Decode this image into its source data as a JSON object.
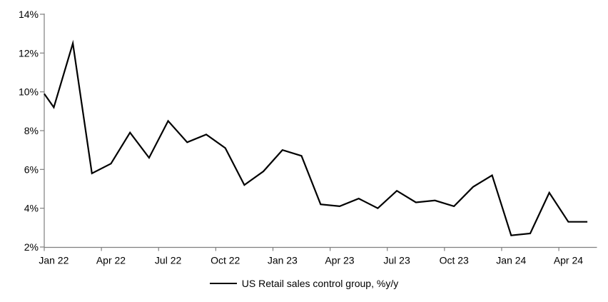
{
  "chart_data": {
    "type": "line",
    "title": "",
    "xlabel": "",
    "ylabel": "",
    "x": [
      "Jan 22",
      "Feb 22",
      "Mar 22",
      "Apr 22",
      "May 22",
      "Jun 22",
      "Jul 22",
      "Aug 22",
      "Sep 22",
      "Oct 22",
      "Nov 22",
      "Dec 22",
      "Jan 23",
      "Feb 23",
      "Mar 23",
      "Apr 23",
      "May 23",
      "Jun 23",
      "Jul 23",
      "Aug 23",
      "Sep 23",
      "Oct 23",
      "Nov 23",
      "Dec 23",
      "Jan 24",
      "Feb 24",
      "Mar 24",
      "Apr 24",
      "May 24"
    ],
    "series": [
      {
        "name": "US Retail sales control group, %y/y",
        "values": [
          9.2,
          12.5,
          5.8,
          6.3,
          7.9,
          6.6,
          8.5,
          7.4,
          7.8,
          7.1,
          5.2,
          5.9,
          7.0,
          6.7,
          4.2,
          4.1,
          4.5,
          4.0,
          4.9,
          4.3,
          4.4,
          4.1,
          5.1,
          5.7,
          2.6,
          2.7,
          4.8,
          3.3,
          3.3
        ]
      }
    ],
    "clipped_start_value": 9.9,
    "ylim": [
      2,
      14
    ],
    "ytick_labels": [
      "2%",
      "4%",
      "6%",
      "8%",
      "10%",
      "12%",
      "14%"
    ],
    "xtick_labels": [
      "Jan 22",
      "Apr 22",
      "Jul 22",
      "Oct 22",
      "Jan 23",
      "Apr 23",
      "Jul 23",
      "Oct 23",
      "Jan 24",
      "Apr 24"
    ],
    "grid": false,
    "legend_position": "bottom-center",
    "legend_label": "US Retail sales control group, %y/y",
    "colors": {
      "series": "#000000",
      "axis": "#7f7f7f",
      "text": "#000000",
      "background": "#ffffff"
    }
  }
}
